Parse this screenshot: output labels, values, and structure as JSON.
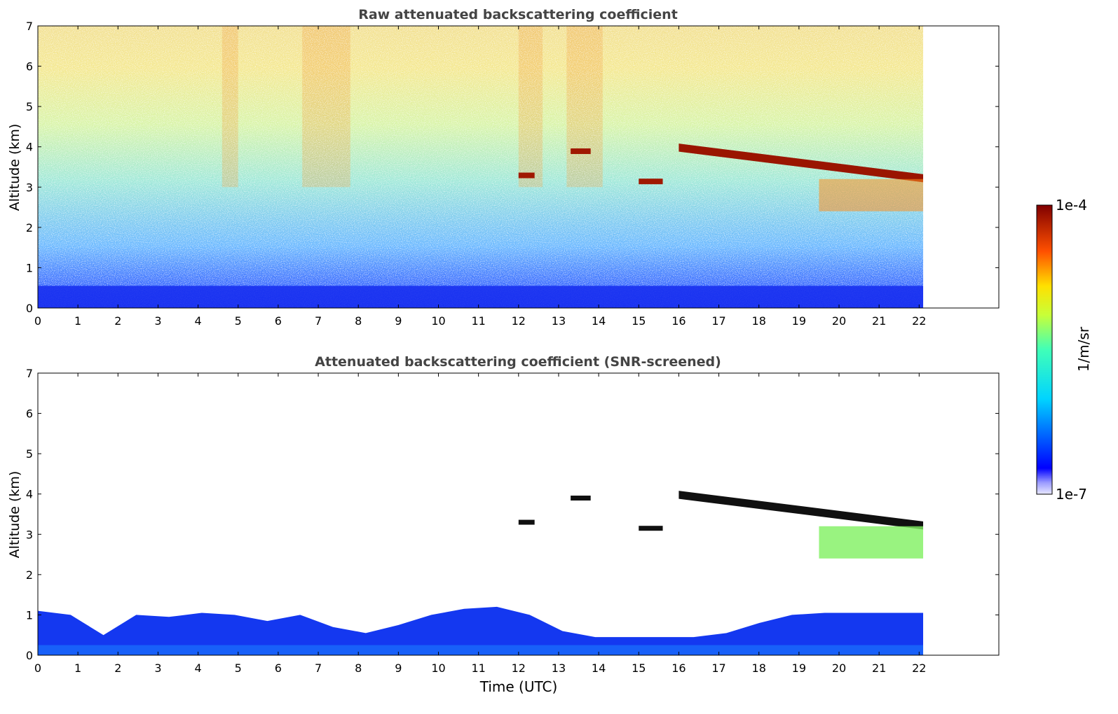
{
  "chart_data": [
    {
      "type": "heatmap",
      "title": "Raw attenuated backscattering coefficient",
      "xlabel": "",
      "ylabel": "Altitude (km)",
      "xlim": [
        0,
        24
      ],
      "ylim": [
        0,
        7
      ],
      "xticks": [
        "0",
        "1",
        "2",
        "3",
        "4",
        "5",
        "6",
        "7",
        "8",
        "9",
        "10",
        "11",
        "12",
        "13",
        "14",
        "15",
        "16",
        "17",
        "18",
        "19",
        "20",
        "21",
        "22"
      ],
      "yticks": [
        "0",
        "1",
        "2",
        "3",
        "4",
        "5",
        "6",
        "7"
      ],
      "data_extent_hours": [
        0,
        22.1
      ],
      "features": [
        {
          "kind": "boundary_layer",
          "x": [
            0,
            22.1
          ],
          "top_km": [
            0.4,
            0.6
          ]
        },
        {
          "kind": "cloud_layer",
          "x": [
            16,
            22.1
          ],
          "alt_km": [
            4.0,
            3.2
          ]
        },
        {
          "kind": "cloud_patch",
          "x": [
            13.3,
            13.8
          ],
          "alt_km": [
            3.9,
            3.9
          ]
        },
        {
          "kind": "cloud_patch",
          "x": [
            12.0,
            12.4
          ],
          "alt_km": [
            3.3,
            3.3
          ]
        },
        {
          "kind": "cloud_patch",
          "x": [
            15.0,
            15.6
          ],
          "alt_km": [
            3.15,
            3.15
          ]
        },
        {
          "kind": "virga",
          "x": [
            19.5,
            22.1
          ],
          "alt_km": [
            3.2,
            2.4
          ]
        }
      ],
      "grid": false
    },
    {
      "type": "heatmap",
      "title": "Attenuated backscattering coefficient (SNR-screened)",
      "xlabel": "Time (UTC)",
      "ylabel": "Altitude (km)",
      "xlim": [
        0,
        24
      ],
      "ylim": [
        0,
        7
      ],
      "xticks": [
        "0",
        "1",
        "2",
        "3",
        "4",
        "5",
        "6",
        "7",
        "8",
        "9",
        "10",
        "11",
        "12",
        "13",
        "14",
        "15",
        "16",
        "17",
        "18",
        "19",
        "20",
        "21",
        "22"
      ],
      "yticks": [
        "0",
        "1",
        "2",
        "3",
        "4",
        "5",
        "6",
        "7"
      ],
      "data_extent_hours": [
        0,
        22.1
      ],
      "grid": false
    }
  ],
  "colorbar": {
    "max_label": "1e-4",
    "min_label": "1e-7",
    "label": "1/m/sr",
    "scale": "log",
    "colormap": "jet"
  }
}
